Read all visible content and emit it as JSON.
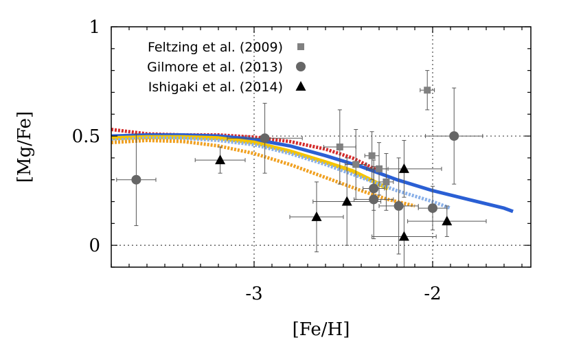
{
  "chart_data": {
    "type": "scatter",
    "title": "",
    "xlabel": "[Fe/H]",
    "ylabel": "[Mg/Fe]",
    "xlim": [
      -3.8,
      -1.45
    ],
    "ylim": [
      -0.1,
      1.0
    ],
    "x_ticks": [
      {
        "value": -3,
        "label": "-3"
      },
      {
        "value": -2,
        "label": "-2"
      }
    ],
    "y_ticks": [
      {
        "value": 0,
        "label": "0"
      },
      {
        "value": 0.5,
        "label": "0.5"
      },
      {
        "value": 1,
        "label": "1"
      }
    ],
    "x_minor_step": 0.1,
    "y_minor_step": 0.1,
    "grid": {
      "x": [
        -3,
        -2
      ],
      "y": [
        0.5,
        0
      ]
    },
    "legend_position": "top-left",
    "colors": {
      "feltzing": "#808080",
      "gilmore": "#666666",
      "ishigaki": "#000000",
      "errorbar": "#555555",
      "grid": "#555555"
    },
    "series": [
      {
        "name": "Feltzing et al. (2009)",
        "marker": "square",
        "points": [
          {
            "x": -2.03,
            "y": 0.71,
            "xerr": 0.04,
            "yerr": 0.09
          },
          {
            "x": -2.52,
            "y": 0.45,
            "xerr": 0.09,
            "yerr": 0.17
          },
          {
            "x": -2.43,
            "y": 0.37,
            "xerr": 0.06,
            "yerr": 0.16
          },
          {
            "x": -2.34,
            "y": 0.41,
            "xerr": 0.04,
            "yerr": 0.11
          },
          {
            "x": -2.3,
            "y": 0.35,
            "xerr": 0.05,
            "yerr": 0.12
          },
          {
            "x": -2.26,
            "y": 0.29,
            "xerr": 0.04,
            "yerr": 0.13
          }
        ]
      },
      {
        "name": "Gilmore et al. (2013)",
        "marker": "circle",
        "points": [
          {
            "x": -3.66,
            "y": 0.3,
            "xerr": 0.11,
            "yerr": 0.21
          },
          {
            "x": -2.94,
            "y": 0.49,
            "xerr": 0.21,
            "yerr": 0.16
          },
          {
            "x": -2.33,
            "y": 0.26,
            "xerr": 0.06,
            "yerr": 0.1
          },
          {
            "x": -2.33,
            "y": 0.21,
            "xerr": 0.11,
            "yerr": 0.18
          },
          {
            "x": -2.19,
            "y": 0.18,
            "xerr": 0.11,
            "yerr": 0.22
          },
          {
            "x": -2.0,
            "y": 0.17,
            "xerr": 0.08,
            "yerr": 0.1
          },
          {
            "x": -1.88,
            "y": 0.5,
            "xerr": 0.16,
            "yerr": 0.22
          }
        ]
      },
      {
        "name": "Ishigaki et al. (2014)",
        "marker": "triangle",
        "points": [
          {
            "x": -3.19,
            "y": 0.39,
            "xerr": 0.14,
            "yerr": 0.06
          },
          {
            "x": -2.65,
            "y": 0.13,
            "xerr": 0.15,
            "yerr": 0.16
          },
          {
            "x": -2.48,
            "y": 0.2,
            "xerr": 0.19,
            "yerr": 0.2
          },
          {
            "x": -2.16,
            "y": 0.35,
            "xerr": 0.21,
            "yerr": 0.13
          },
          {
            "x": -2.16,
            "y": 0.04,
            "xerr": 0.18,
            "yerr": 0.14
          },
          {
            "x": -1.92,
            "y": 0.11,
            "xerr": 0.22,
            "yerr": 0.07
          }
        ]
      }
    ],
    "models": [
      {
        "style": "dotted",
        "color": "#d42a2a",
        "width": 5,
        "points": [
          [
            -3.8,
            0.53
          ],
          [
            -3.6,
            0.51
          ],
          [
            -3.4,
            0.505
          ],
          [
            -3.2,
            0.505
          ],
          [
            -3.0,
            0.495
          ],
          [
            -2.8,
            0.475
          ],
          [
            -2.6,
            0.44
          ],
          [
            -2.45,
            0.4
          ],
          [
            -2.35,
            0.36
          ],
          [
            -2.3,
            0.34
          ]
        ]
      },
      {
        "style": "solid",
        "color": "#2a5fd4",
        "width": 5,
        "points": [
          [
            -3.8,
            0.5
          ],
          [
            -3.6,
            0.505
          ],
          [
            -3.4,
            0.505
          ],
          [
            -3.2,
            0.5
          ],
          [
            -3.0,
            0.485
          ],
          [
            -2.8,
            0.455
          ],
          [
            -2.6,
            0.41
          ],
          [
            -2.4,
            0.36
          ],
          [
            -2.2,
            0.3
          ],
          [
            -2.0,
            0.25
          ],
          [
            -1.8,
            0.21
          ],
          [
            -1.6,
            0.17
          ],
          [
            -1.55,
            0.155
          ]
        ]
      },
      {
        "style": "solid",
        "color": "#f5c400",
        "width": 6,
        "points": [
          [
            -3.8,
            0.49
          ],
          [
            -3.6,
            0.495
          ],
          [
            -3.4,
            0.495
          ],
          [
            -3.2,
            0.49
          ],
          [
            -3.0,
            0.47
          ],
          [
            -2.8,
            0.43
          ],
          [
            -2.6,
            0.38
          ],
          [
            -2.45,
            0.34
          ],
          [
            -2.35,
            0.3
          ],
          [
            -2.25,
            0.26
          ]
        ]
      },
      {
        "style": "dotted",
        "color": "#8ab0e8",
        "width": 5,
        "points": [
          [
            -3.8,
            0.48
          ],
          [
            -3.6,
            0.49
          ],
          [
            -3.4,
            0.49
          ],
          [
            -3.2,
            0.48
          ],
          [
            -3.0,
            0.46
          ],
          [
            -2.8,
            0.42
          ],
          [
            -2.6,
            0.37
          ],
          [
            -2.4,
            0.31
          ],
          [
            -2.2,
            0.25
          ],
          [
            -2.0,
            0.2
          ],
          [
            -1.9,
            0.17
          ]
        ]
      },
      {
        "style": "dotted",
        "color": "#f0a020",
        "width": 5,
        "points": [
          [
            -3.8,
            0.47
          ],
          [
            -3.6,
            0.48
          ],
          [
            -3.4,
            0.475
          ],
          [
            -3.2,
            0.455
          ],
          [
            -3.0,
            0.42
          ],
          [
            -2.8,
            0.37
          ],
          [
            -2.6,
            0.31
          ],
          [
            -2.4,
            0.25
          ],
          [
            -2.25,
            0.21
          ],
          [
            -2.1,
            0.18
          ]
        ]
      }
    ]
  }
}
